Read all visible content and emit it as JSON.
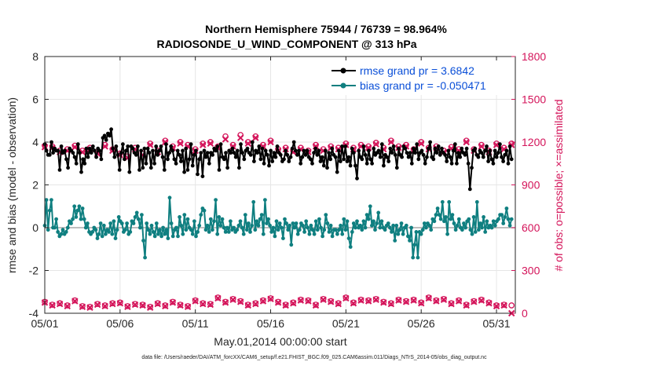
{
  "chart_data": {
    "type": "line",
    "title": "Northern Hemisphere 75944 / 76739 = 98.964%",
    "subtitle": "RADIOSONDE_U_WIND_COMPONENT @ 313 hPa",
    "xlabel": "May.01,2014 00:00:00 start",
    "ylabel": "rmse and bias (model - observation)",
    "y2label": "# of obs: o=possible; ×=assimilated",
    "footnote": "data file: /Users/raeder/DAI/ATM_forcXX/CAM6_setup/f.e21.FHIST_BGC.f09_025.CAM6assim.011/Diags_NTrS_2014-05/obs_diag_output.nc",
    "x_range": [
      1,
      32.25
    ],
    "ylim": [
      -4,
      8
    ],
    "y2lim": [
      0,
      1800
    ],
    "xticks": [
      1,
      6,
      11,
      16,
      21,
      26,
      31
    ],
    "xtick_labels": [
      "05/01",
      "05/06",
      "05/11",
      "05/16",
      "05/21",
      "05/26",
      "05/31"
    ],
    "yticks": [
      -4,
      -2,
      0,
      2,
      4,
      6,
      8
    ],
    "ytick_labels": [
      "-4",
      "-2",
      "0",
      "2",
      "4",
      "6",
      "8"
    ],
    "y2ticks": [
      0,
      300,
      600,
      900,
      1200,
      1500,
      1800
    ],
    "y2tick_labels": [
      "0",
      "300",
      "600",
      "900",
      "1200",
      "1500",
      "1800"
    ],
    "grid": true,
    "legend_position": "top-right",
    "series": [
      {
        "name": "rmse grand pr = 3.6842",
        "color": "#000000",
        "marker": "circle",
        "values": [
          3.9,
          3.6,
          3.4,
          3.4,
          4.0,
          3.5,
          3.7,
          3.6,
          3.6,
          2.7,
          3.8,
          3.5,
          3.6,
          3.2,
          2.8,
          3.7,
          3.6,
          3.5,
          3.3,
          3.0,
          3.9,
          3.5,
          2.6,
          3.2,
          3.0,
          3.7,
          3.3,
          3.7,
          3.5,
          3.8,
          3.6,
          3.3,
          3.7,
          3.6,
          3.2,
          4.2,
          4.3,
          4.1,
          4.4,
          4.3,
          4.6,
          3.7,
          3.3,
          3.8,
          3.4,
          2.7,
          3.5,
          3.9,
          3.2,
          3.6,
          3.8,
          2.6,
          3.8,
          3.7,
          3.5,
          3.4,
          3.8,
          2.7,
          3.6,
          2.8,
          3.7,
          3.0,
          3.7,
          3.5,
          2.8,
          3.6,
          3.0,
          3.8,
          3.4,
          3.6,
          3.8,
          3.3,
          2.7,
          3.9,
          3.2,
          3.5,
          3.8,
          3.6,
          3.2,
          3.0,
          3.6,
          3.4,
          3.1,
          3.6,
          2.6,
          3.7,
          2.7,
          3.2,
          3.9,
          2.9,
          3.4,
          3.6,
          2.5,
          3.2,
          3.5,
          2.4,
          3.6,
          3.3,
          3.5,
          3.0,
          3.5,
          3.4,
          3.7,
          3.6,
          3.8,
          2.7,
          3.9,
          3.3,
          3.2,
          3.5,
          2.8,
          3.6,
          3.5,
          3.7,
          3.5,
          3.3,
          3.6,
          2.8,
          3.9,
          3.5,
          3.2,
          3.6,
          3.7,
          3.5,
          3.4,
          4.0,
          3.1,
          3.6,
          3.5,
          3.8,
          3.2,
          3.7,
          3.0,
          3.6,
          3.4,
          2.9,
          3.6,
          3.1,
          3.5,
          3.3,
          3.8,
          3.5,
          3.4,
          3.1,
          3.2,
          3.6,
          3.4,
          3.1,
          3.3,
          3.7,
          4.0,
          3.6,
          3.4,
          3.6,
          3.0,
          3.3,
          3.6,
          3.4,
          3.6,
          3.3,
          3.2,
          3.0,
          3.5,
          3.7,
          3.4,
          3.6,
          3.1,
          3.3,
          2.9,
          3.6,
          2.8,
          3.5,
          3.2,
          3.7,
          3.4,
          3.3,
          2.6,
          3.6,
          3.1,
          3.8,
          3.2,
          3.8,
          3.1,
          3.3,
          2.9,
          3.7,
          3.5,
          2.9,
          2.3,
          3.6,
          3.3,
          3.2,
          3.8,
          3.4,
          3.0,
          3.6,
          3.2,
          3.0,
          3.7,
          3.4,
          3.5,
          3.6,
          3.3,
          3.9,
          2.9,
          3.4,
          3.3,
          3.1,
          3.7,
          3.5,
          3.8,
          3.4,
          2.8,
          3.7,
          3.4,
          3.3,
          3.8,
          3.7,
          3.5,
          3.3,
          3.5,
          3.0,
          3.7,
          3.5,
          3.9,
          3.2,
          3.5,
          3.6,
          3.4,
          3.0,
          3.3,
          3.7,
          4.0,
          3.3,
          3.2,
          3.7,
          3.5,
          3.8,
          3.4,
          3.7,
          3.5,
          3.4,
          3.1,
          3.6,
          3.3,
          3.0,
          3.6,
          3.9,
          3.0,
          3.5,
          3.3,
          3.7,
          3.5,
          3.4,
          3.7,
          3.0,
          1.8,
          2.8,
          3.6,
          3.7,
          3.4,
          3.3,
          3.6,
          3.5,
          3.3,
          3.6,
          3.8,
          3.1,
          3.6,
          3.2,
          3.0,
          3.6,
          3.3,
          3.5,
          3.9,
          3.3,
          3.1,
          3.4,
          3.6,
          3.0,
          3.8,
          3.2
        ]
      },
      {
        "name": "bias grand pr = -0.050471",
        "color": "#0f7f80",
        "marker": "circle",
        "values": [
          0.1,
          1.3,
          -0.1,
          0.8,
          1.3,
          0.0,
          0.0,
          0.4,
          -0.2,
          -0.4,
          -0.3,
          -0.1,
          -0.3,
          -0.2,
          0.0,
          0.3,
          0.2,
          0.4,
          1.0,
          0.5,
          0.8,
          1.0,
          0.4,
          0.9,
          0.4,
          0.0,
          0.2,
          -0.2,
          -0.3,
          -0.2,
          0.0,
          -0.1,
          -0.5,
          -0.3,
          0.2,
          -0.4,
          0.1,
          -0.3,
          -0.1,
          -0.2,
          0.2,
          -0.3,
          0.3,
          -0.5,
          -0.1,
          0.5,
          0.3,
          0.2,
          -0.2,
          -0.1,
          0.2,
          -0.3,
          -0.2,
          0.3,
          0.2,
          0.5,
          0.7,
          0.4,
          0.0,
          0.6,
          -0.6,
          -1.4,
          0.2,
          -0.1,
          -0.3,
          0.1,
          -0.2,
          -0.4,
          0.2,
          -0.3,
          -0.1,
          -0.4,
          0.0,
          -0.3,
          -0.1,
          -0.5,
          1.4,
          0.2,
          -0.4,
          -0.1,
          0.0,
          -0.4,
          0.5,
          0.1,
          -0.3,
          0.6,
          -0.1,
          0.4,
          0.0,
          -0.1,
          -0.3,
          0.3,
          -0.4,
          -0.2,
          0.1,
          0.6,
          0.9,
          0.8,
          -0.1,
          0.1,
          -0.2,
          0.4,
          -0.1,
          0.3,
          1.3,
          -0.3,
          0.5,
          0.1,
          0.4,
          0.0,
          -0.2,
          0.0,
          -0.2,
          0.3,
          -0.1,
          0.0,
          -0.2,
          -0.1,
          0.1,
          0.3,
          0.0,
          -0.3,
          0.6,
          -0.1,
          0.2,
          -0.2,
          0.1,
          1.2,
          -0.1,
          0.3,
          0.1,
          0.4,
          0.6,
          -0.3,
          1.3,
          0.2,
          0.4,
          0.1,
          -0.2,
          0.0,
          -0.4,
          0.3,
          -0.1,
          0.2,
          0.0,
          -0.5,
          0.4,
          0.2,
          -0.1,
          0.1,
          -0.8,
          0.2,
          0.0,
          0.2,
          -0.3,
          -0.1,
          0.2,
          0.1,
          -0.2,
          0.3,
          0.0,
          -0.3,
          0.1,
          -0.1,
          -0.3,
          0.3,
          -0.1,
          0.4,
          0.0,
          -0.4,
          -0.1,
          0.6,
          0.2,
          -0.2,
          0.1,
          -0.4,
          -0.1,
          -0.1,
          -0.3,
          -0.1,
          0.1,
          -0.3,
          0.4,
          -0.1,
          0.3,
          -0.5,
          -0.9,
          -0.2,
          0.2,
          0.0,
          0.3,
          0.0,
          0.1,
          -0.1,
          0.3,
          0.0,
          0.6,
          0.4,
          1.0,
          0.1,
          0.3,
          -0.1,
          0.2,
          0.7,
          0.0,
          0.3,
          0.0,
          -0.1,
          0.1,
          0.2,
          0.0,
          -0.2,
          0.1,
          -0.6,
          0.1,
          -0.3,
          -0.1,
          0.2,
          -0.3,
          0.0,
          0.1,
          -0.4,
          -0.6,
          0.0,
          -1.4,
          -0.8,
          -0.2,
          -1.4,
          -0.2,
          -0.3,
          -0.1,
          0.2,
          0.0,
          0.2,
          0.1,
          -0.1,
          0.4,
          0.3,
          0.6,
          0.9,
          0.6,
          0.4,
          1.2,
          0.3,
          0.5,
          -0.3,
          1.2,
          0.4,
          0.6,
          0.2,
          -0.1,
          0.1,
          0.4,
          0.0,
          -0.1,
          0.2,
          0.0,
          0.3,
          0.4,
          -0.1,
          -0.3,
          0.5,
          -0.2,
          1.2,
          -0.1,
          0.2,
          0.0,
          0.5,
          -0.2,
          0.3,
          0.0,
          0.1,
          0.0,
          0.3,
          0.1,
          0.3,
          0.4,
          0.6,
          0.6,
          0.2,
          0.5,
          0.9,
          0.4,
          0.1,
          0.4
        ]
      }
    ],
    "obs_count_series": [
      {
        "name": "possible",
        "color": "#d4145a",
        "marker": "circle",
        "axis": "right",
        "x": [
          1.0,
          1.5,
          2.0,
          2.5,
          3.0,
          3.5,
          4.0,
          4.5,
          5.0,
          5.5,
          6.0,
          6.5,
          7.0,
          7.5,
          8.0,
          8.5,
          9.0,
          9.5,
          10.0,
          10.5,
          11.0,
          11.5,
          12.0,
          12.5,
          13.0,
          13.5,
          14.0,
          14.5,
          15.0,
          15.5,
          16.0,
          16.5,
          17.0,
          17.5,
          18.0,
          18.5,
          19.0,
          19.5,
          20.0,
          20.5,
          21.0,
          21.5,
          22.0,
          22.5,
          23.0,
          23.5,
          24.0,
          24.5,
          25.0,
          25.5,
          26.0,
          26.5,
          27.0,
          27.5,
          28.0,
          28.5,
          29.0,
          29.5,
          30.0,
          30.5,
          31.0,
          31.5,
          32.0,
          1.0,
          1.5,
          2.0,
          2.5,
          3.0,
          3.5,
          4.0,
          4.5,
          5.0,
          5.5,
          6.0,
          6.5,
          7.0,
          7.5,
          8.0,
          8.5,
          9.0,
          9.5,
          10.0,
          10.5,
          11.0,
          11.5,
          12.0,
          12.5,
          13.0,
          13.5,
          14.0,
          14.5,
          15.0,
          15.5,
          16.0,
          16.5,
          17.0,
          17.5,
          18.0,
          18.5,
          19.0,
          19.5,
          20.0,
          20.5,
          21.0,
          21.5,
          22.0,
          22.5,
          23.0,
          23.5,
          24.0,
          24.5,
          25.0,
          25.5,
          26.0,
          26.5,
          27.0,
          27.5,
          28.0,
          28.5,
          29.0,
          29.5,
          30.0,
          30.5,
          31.0,
          31.5,
          32.0
        ],
        "values": [
          1175,
          1170,
          1140,
          1150,
          1175,
          1140,
          1160,
          1130,
          1180,
          1150,
          1120,
          1100,
          1160,
          1120,
          1190,
          1140,
          1210,
          1170,
          1200,
          1180,
          1150,
          1190,
          1200,
          1170,
          1240,
          1180,
          1250,
          1200,
          1240,
          1180,
          1210,
          1150,
          1160,
          1140,
          1160,
          1140,
          1180,
          1150,
          1170,
          1160,
          1190,
          1160,
          1180,
          1170,
          1195,
          1160,
          1210,
          1170,
          1180,
          1150,
          1200,
          1160,
          1170,
          1140,
          1165,
          1150,
          1210,
          1150,
          1180,
          1140,
          1190,
          1160,
          1190,
          80,
          60,
          70,
          55,
          90,
          50,
          45,
          65,
          55,
          70,
          75,
          50,
          65,
          60,
          45,
          70,
          55,
          80,
          60,
          50,
          90,
          70,
          65,
          110,
          80,
          100,
          85,
          60,
          70,
          90,
          105,
          80,
          60,
          75,
          95,
          90,
          60,
          100,
          85,
          70,
          110,
          75,
          95,
          90,
          100,
          80,
          70,
          95,
          85,
          95,
          75,
          110,
          90,
          100,
          70,
          90,
          60,
          85,
          95,
          75,
          55,
          60,
          55
        ]
      },
      {
        "name": "assimilated",
        "color": "#d4145a",
        "marker": "x",
        "axis": "right",
        "x": [
          1.0,
          1.5,
          2.0,
          2.5,
          3.0,
          3.5,
          4.0,
          4.5,
          5.0,
          5.5,
          6.0,
          6.5,
          7.0,
          7.5,
          8.0,
          8.5,
          9.0,
          9.5,
          10.0,
          10.5,
          11.0,
          11.5,
          12.0,
          12.5,
          13.0,
          13.5,
          14.0,
          14.5,
          15.0,
          15.5,
          16.0,
          16.5,
          17.0,
          17.5,
          18.0,
          18.5,
          19.0,
          19.5,
          20.0,
          20.5,
          21.0,
          21.5,
          22.0,
          22.5,
          23.0,
          23.5,
          24.0,
          24.5,
          25.0,
          25.5,
          26.0,
          26.5,
          27.0,
          27.5,
          28.0,
          28.5,
          29.0,
          29.5,
          30.0,
          30.5,
          31.0,
          31.5,
          32.0,
          1.0,
          1.5,
          2.0,
          2.5,
          3.0,
          3.5,
          4.0,
          4.5,
          5.0,
          5.5,
          6.0,
          6.5,
          7.0,
          7.5,
          8.0,
          8.5,
          9.0,
          9.5,
          10.0,
          10.5,
          11.0,
          11.5,
          12.0,
          12.5,
          13.0,
          13.5,
          14.0,
          14.5,
          15.0,
          15.5,
          16.0,
          16.5,
          17.0,
          17.5,
          18.0,
          18.5,
          19.0,
          19.5,
          20.0,
          20.5,
          21.0,
          21.5,
          22.0,
          22.5,
          23.0,
          23.5,
          24.0,
          24.5,
          25.0,
          25.5,
          26.0,
          26.5,
          27.0,
          27.5,
          28.0,
          28.5,
          29.0,
          29.5,
          30.0,
          30.5,
          31.0,
          31.5,
          32.0
        ],
        "values": [
          1165,
          1160,
          1130,
          1140,
          1165,
          1130,
          1150,
          1120,
          1170,
          1140,
          1110,
          1090,
          1150,
          1110,
          1180,
          1130,
          1200,
          1160,
          1190,
          1170,
          1140,
          1180,
          1190,
          1160,
          1220,
          1170,
          1230,
          1190,
          1230,
          1170,
          1200,
          1140,
          1150,
          1130,
          1150,
          1130,
          1170,
          1140,
          1160,
          1150,
          1180,
          1150,
          1170,
          1160,
          1185,
          1150,
          1200,
          1160,
          1170,
          1140,
          1190,
          1150,
          1160,
          1130,
          1155,
          1140,
          1200,
          1140,
          1170,
          1130,
          1180,
          1150,
          1180,
          75,
          55,
          65,
          50,
          85,
          45,
          40,
          60,
          50,
          65,
          70,
          45,
          60,
          55,
          40,
          65,
          50,
          75,
          55,
          45,
          85,
          65,
          60,
          105,
          75,
          95,
          80,
          55,
          65,
          85,
          100,
          75,
          55,
          70,
          90,
          85,
          55,
          95,
          80,
          65,
          105,
          70,
          90,
          85,
          95,
          75,
          65,
          90,
          80,
          90,
          70,
          105,
          85,
          95,
          65,
          85,
          55,
          80,
          90,
          70,
          50,
          55,
          0
        ]
      }
    ]
  }
}
